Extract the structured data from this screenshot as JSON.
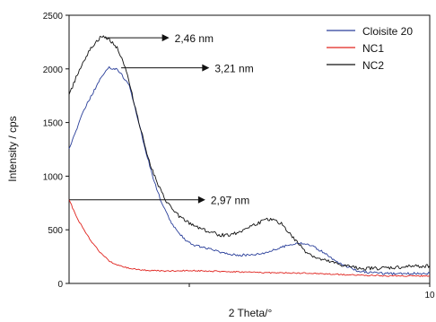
{
  "chart_data": {
    "type": "line",
    "title": "",
    "xlabel": "2 Theta/°",
    "ylabel": "Intensity / cps",
    "xlim": [
      1,
      10
    ],
    "ylim": [
      0,
      2500
    ],
    "y_ticks": [
      0,
      500,
      1000,
      1500,
      2000,
      2500
    ],
    "y_tick_labels": [
      "0",
      "500",
      "1000",
      "1500",
      "2000",
      "2500"
    ],
    "x_tick_labels": [
      {
        "x": 10,
        "label": "10"
      }
    ],
    "x_minor_ticks": [
      4
    ],
    "legend_position": "top-right",
    "series": [
      {
        "name": "Cloisite 20",
        "color": "#2a3f9a",
        "x": [
          1.0,
          1.2,
          1.4,
          1.6,
          1.8,
          2.0,
          2.2,
          2.5,
          2.7,
          2.9,
          3.1,
          3.3,
          3.5,
          3.7,
          3.9,
          4.1,
          4.3,
          4.6,
          4.9,
          5.2,
          5.5,
          5.8,
          6.1,
          6.4,
          6.7,
          7.0,
          7.3,
          7.6,
          7.9,
          8.2,
          8.5,
          8.8,
          9.1,
          9.4,
          9.7,
          10.0
        ],
        "y": [
          1250,
          1450,
          1640,
          1780,
          1920,
          2010,
          2000,
          1850,
          1560,
          1250,
          980,
          760,
          600,
          480,
          410,
          360,
          340,
          310,
          280,
          265,
          265,
          280,
          310,
          350,
          380,
          360,
          300,
          220,
          160,
          120,
          100,
          95,
          90,
          90,
          95,
          95
        ]
      },
      {
        "name": "NC1",
        "color": "#e0241f",
        "x": [
          1.0,
          1.2,
          1.4,
          1.6,
          1.8,
          2.0,
          2.2,
          2.5,
          2.8,
          3.1,
          3.5,
          4.0,
          5.0,
          6.0,
          7.0,
          8.0,
          9.0,
          10.0
        ],
        "y": [
          780,
          610,
          480,
          370,
          280,
          210,
          170,
          140,
          125,
          120,
          115,
          120,
          110,
          100,
          95,
          80,
          70,
          70
        ]
      },
      {
        "name": "NC2",
        "color": "#111111",
        "x": [
          1.0,
          1.2,
          1.4,
          1.6,
          1.8,
          2.0,
          2.2,
          2.4,
          2.6,
          2.8,
          3.0,
          3.2,
          3.4,
          3.6,
          3.8,
          4.0,
          4.2,
          4.5,
          4.8,
          5.1,
          5.4,
          5.7,
          6.0,
          6.3,
          6.6,
          6.9,
          7.2,
          7.5,
          7.8,
          8.1,
          8.4,
          8.7,
          9.0,
          9.3,
          9.6,
          10.0
        ],
        "y": [
          1750,
          1950,
          2100,
          2220,
          2300,
          2280,
          2200,
          2020,
          1720,
          1420,
          1140,
          930,
          780,
          680,
          610,
          560,
          530,
          480,
          450,
          460,
          510,
          560,
          600,
          560,
          420,
          300,
          230,
          200,
          170,
          150,
          140,
          140,
          145,
          150,
          160,
          165
        ]
      }
    ],
    "annotations": [
      {
        "label": "2,46 nm",
        "x_start": 1.9,
        "x_end": 3.5,
        "y": 2290
      },
      {
        "label": "3,21 nm",
        "x_start": 2.3,
        "x_end": 4.5,
        "y": 2010
      },
      {
        "label": "2,97 nm",
        "x_start": 1.0,
        "x_end": 4.4,
        "y": 780
      }
    ]
  }
}
